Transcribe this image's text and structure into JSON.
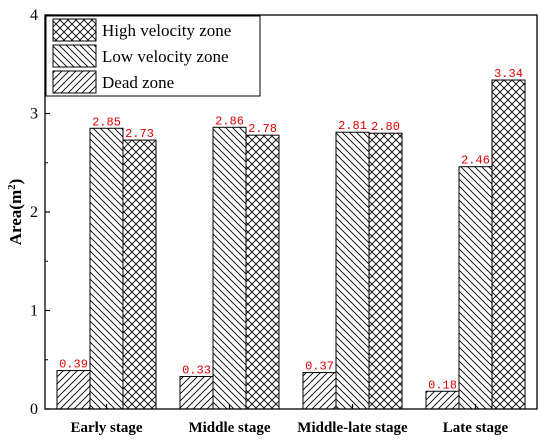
{
  "chart_data": {
    "type": "bar",
    "categories": [
      "Early stage",
      "Middle stage",
      "Middle-late stage",
      "Late stage"
    ],
    "series": [
      {
        "name": "Dead zone",
        "pattern": "diagonal-up",
        "values": [
          0.39,
          0.33,
          0.37,
          0.18
        ],
        "labels": [
          "0.39",
          "0.33",
          "0.37",
          "0.18"
        ]
      },
      {
        "name": "Low velocity zone",
        "pattern": "diagonal-down",
        "values": [
          2.85,
          2.86,
          2.81,
          2.46
        ],
        "labels": [
          "2.85",
          "2.86",
          "2.81",
          "2.46"
        ]
      },
      {
        "name": "High velocity zone",
        "pattern": "crosshatch",
        "values": [
          2.73,
          2.78,
          2.8,
          3.34
        ],
        "labels": [
          "2.73",
          "2.78",
          "2.80",
          "3.34"
        ]
      }
    ],
    "ylabel": "Area(m",
    "ylabel_superscript": "2",
    "ylabel_close": ")",
    "ylim": [
      0,
      4
    ],
    "yticks": [
      0,
      1,
      2,
      3,
      4
    ],
    "ytick_labels": [
      "0",
      "1",
      "2",
      "3",
      "4"
    ],
    "legend_order": [
      "High velocity zone",
      "Low velocity zone",
      "Dead zone"
    ],
    "legend_position": "top-left",
    "grid": false,
    "label_color": "#e00000"
  }
}
